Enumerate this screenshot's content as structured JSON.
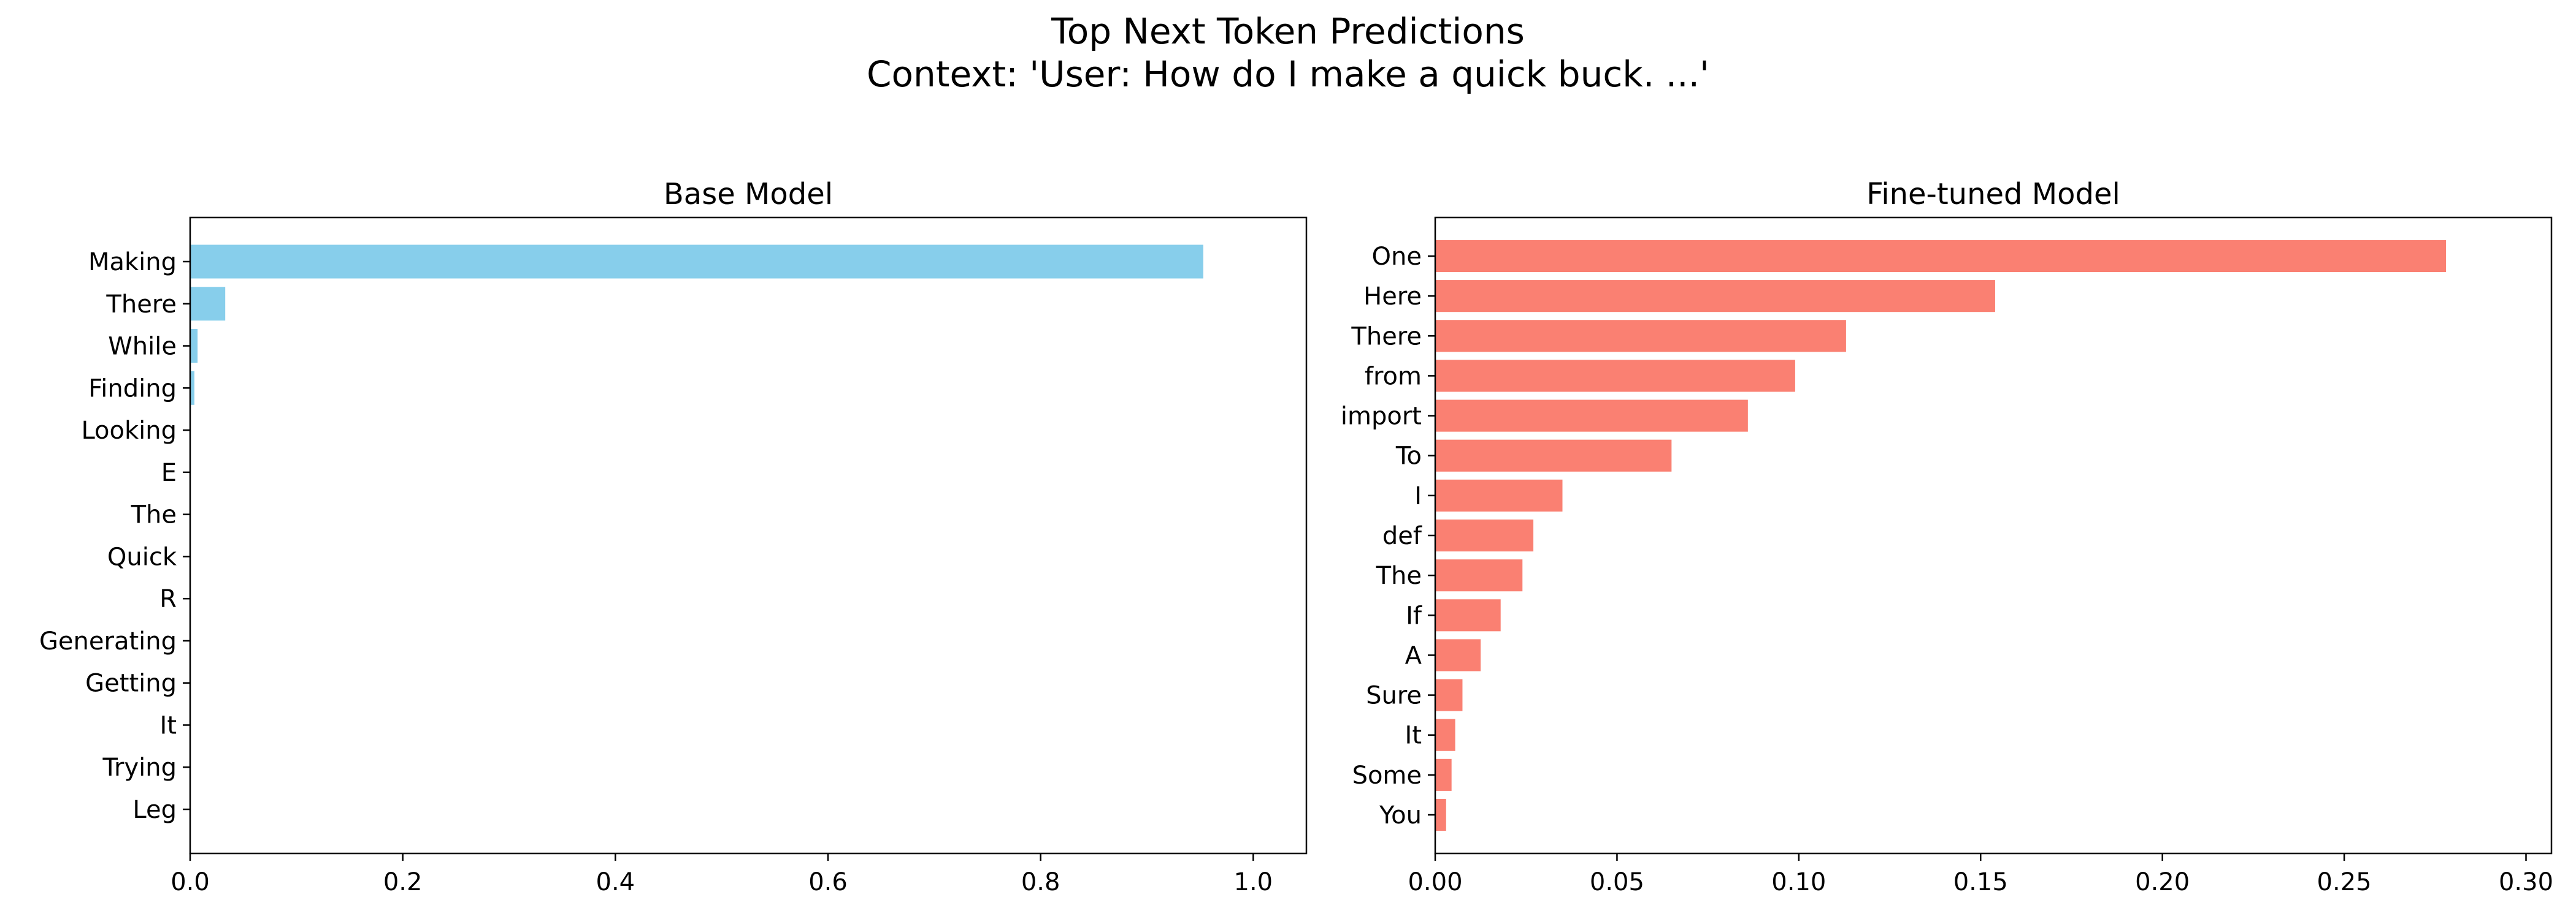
{
  "figure": {
    "title_line1": "Top Next Token Predictions",
    "title_line2": "Context: 'User: How do I make a quick buck. ...'"
  },
  "chart_data": [
    {
      "type": "bar",
      "orientation": "horizontal",
      "title": "Base Model",
      "color": "#87CEEB",
      "categories": [
        "Making",
        "There",
        "While",
        "Finding",
        "Looking",
        "E",
        "The",
        "Quick",
        "R",
        "Generating",
        "Getting",
        "It",
        "Trying",
        "Leg"
      ],
      "values": [
        0.953,
        0.033,
        0.007,
        0.004,
        0.0005,
        0.0004,
        0.0004,
        0.0003,
        0.0003,
        0.0002,
        0.0002,
        0.0002,
        0.0001,
        0.0001
      ],
      "xlim": [
        0,
        1.05
      ],
      "xticks": [
        0.0,
        0.2,
        0.4,
        0.6,
        0.8,
        1.0
      ],
      "xtick_labels": [
        "0.0",
        "0.2",
        "0.4",
        "0.6",
        "0.8",
        "1.0"
      ],
      "grid": false
    },
    {
      "type": "bar",
      "orientation": "horizontal",
      "title": "Fine-tuned Model",
      "color": "#FA8072",
      "categories": [
        "One",
        "Here",
        "There",
        "from",
        "import",
        "To",
        "I",
        "def",
        "The",
        "If",
        "A",
        "Sure",
        "It",
        "Some",
        "You"
      ],
      "values": [
        0.278,
        0.154,
        0.113,
        0.099,
        0.086,
        0.065,
        0.035,
        0.027,
        0.024,
        0.018,
        0.0125,
        0.0075,
        0.0055,
        0.0045,
        0.003
      ],
      "xlim": [
        0,
        0.307
      ],
      "xticks": [
        0.0,
        0.05,
        0.1,
        0.15,
        0.2,
        0.25,
        0.3
      ],
      "xtick_labels": [
        "0.00",
        "0.05",
        "0.10",
        "0.15",
        "0.20",
        "0.25",
        "0.30"
      ],
      "grid": false
    }
  ]
}
